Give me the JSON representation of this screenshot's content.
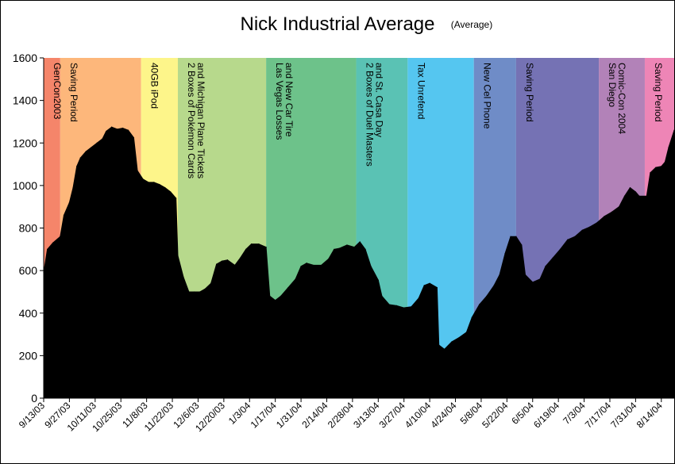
{
  "chart_data": {
    "type": "area",
    "title": "Nick Industrial Average",
    "subtitle": "(Average)",
    "xlabel": "",
    "ylabel": "",
    "ylim": [
      0,
      1600
    ],
    "y_ticks": [
      0,
      200,
      400,
      600,
      800,
      1000,
      1200,
      1400,
      1600
    ],
    "x_range": [
      "2003-09-13",
      "2004-08-21"
    ],
    "x_tick_labels": [
      "9/13/03",
      "9/27/03",
      "10/11/03",
      "10/25/03",
      "11/8/03",
      "11/22/03",
      "12/6/03",
      "12/20/03",
      "1/3/04",
      "1/17/04",
      "1/31/04",
      "2/14/04",
      "2/28/04",
      "3/13/04",
      "3/27/04",
      "4/10/04",
      "4/24/04",
      "5/8/04",
      "5/22/04",
      "6/5/04",
      "6/19/04",
      "7/3/04",
      "7/17/04",
      "7/31/04",
      "8/14/04"
    ],
    "x_tick_dates": [
      "2003-09-13",
      "2003-09-27",
      "2003-10-11",
      "2003-10-25",
      "2003-11-08",
      "2003-11-22",
      "2003-12-06",
      "2003-12-20",
      "2004-01-03",
      "2004-01-17",
      "2004-01-31",
      "2004-02-14",
      "2004-02-28",
      "2004-03-13",
      "2004-03-27",
      "2004-04-10",
      "2004-04-24",
      "2004-05-08",
      "2004-05-22",
      "2004-06-05",
      "2004-06-19",
      "2004-07-03",
      "2004-07-17",
      "2004-07-31",
      "2004-08-14"
    ],
    "grid": false,
    "legend": "none",
    "series": [
      {
        "color": "#000000",
        "points": [
          [
            "2003-09-13",
            590
          ],
          [
            "2003-09-15",
            700
          ],
          [
            "2003-09-18",
            730
          ],
          [
            "2003-09-22",
            760
          ],
          [
            "2003-09-24",
            860
          ],
          [
            "2003-09-27",
            920
          ],
          [
            "2003-09-29",
            990
          ],
          [
            "2003-10-01",
            1090
          ],
          [
            "2003-10-03",
            1130
          ],
          [
            "2003-10-06",
            1160
          ],
          [
            "2003-10-09",
            1180
          ],
          [
            "2003-10-12",
            1200
          ],
          [
            "2003-10-15",
            1220
          ],
          [
            "2003-10-17",
            1255
          ],
          [
            "2003-10-20",
            1275
          ],
          [
            "2003-10-23",
            1265
          ],
          [
            "2003-10-26",
            1270
          ],
          [
            "2003-10-29",
            1260
          ],
          [
            "2003-11-01",
            1225
          ],
          [
            "2003-11-03",
            1070
          ],
          [
            "2003-11-06",
            1030
          ],
          [
            "2003-11-09",
            1015
          ],
          [
            "2003-11-12",
            1015
          ],
          [
            "2003-11-15",
            1005
          ],
          [
            "2003-11-18",
            990
          ],
          [
            "2003-11-21",
            970
          ],
          [
            "2003-11-24",
            940
          ],
          [
            "2003-11-25",
            670
          ],
          [
            "2003-11-28",
            570
          ],
          [
            "2003-12-01",
            500
          ],
          [
            "2003-12-04",
            500
          ],
          [
            "2003-12-07",
            500
          ],
          [
            "2003-12-10",
            515
          ],
          [
            "2003-12-13",
            540
          ],
          [
            "2003-12-16",
            630
          ],
          [
            "2003-12-19",
            645
          ],
          [
            "2003-12-22",
            650
          ],
          [
            "2003-12-26",
            625
          ],
          [
            "2003-12-29",
            660
          ],
          [
            "2004-01-01",
            700
          ],
          [
            "2004-01-04",
            725
          ],
          [
            "2004-01-08",
            725
          ],
          [
            "2004-01-12",
            710
          ],
          [
            "2004-01-14",
            480
          ],
          [
            "2004-01-17",
            460
          ],
          [
            "2004-01-20",
            480
          ],
          [
            "2004-01-24",
            520
          ],
          [
            "2004-01-28",
            560
          ],
          [
            "2004-01-31",
            620
          ],
          [
            "2004-02-03",
            635
          ],
          [
            "2004-02-07",
            625
          ],
          [
            "2004-02-11",
            625
          ],
          [
            "2004-02-15",
            655
          ],
          [
            "2004-02-18",
            700
          ],
          [
            "2004-02-21",
            705
          ],
          [
            "2004-02-25",
            720
          ],
          [
            "2004-02-29",
            710
          ],
          [
            "2004-03-03",
            735
          ],
          [
            "2004-03-06",
            700
          ],
          [
            "2004-03-09",
            620
          ],
          [
            "2004-03-13",
            555
          ],
          [
            "2004-03-15",
            480
          ],
          [
            "2004-03-19",
            440
          ],
          [
            "2004-03-23",
            435
          ],
          [
            "2004-03-27",
            425
          ],
          [
            "2004-03-31",
            430
          ],
          [
            "2004-04-04",
            470
          ],
          [
            "2004-04-07",
            530
          ],
          [
            "2004-04-10",
            540
          ],
          [
            "2004-04-14",
            520
          ],
          [
            "2004-04-15",
            250
          ],
          [
            "2004-04-18",
            230
          ],
          [
            "2004-04-22",
            265
          ],
          [
            "2004-04-26",
            285
          ],
          [
            "2004-04-30",
            310
          ],
          [
            "2004-05-03",
            380
          ],
          [
            "2004-05-07",
            440
          ],
          [
            "2004-05-11",
            480
          ],
          [
            "2004-05-15",
            530
          ],
          [
            "2004-05-18",
            580
          ],
          [
            "2004-05-21",
            680
          ],
          [
            "2004-05-24",
            760
          ],
          [
            "2004-05-27",
            760
          ],
          [
            "2004-05-30",
            720
          ],
          [
            "2004-06-01",
            580
          ],
          [
            "2004-06-05",
            545
          ],
          [
            "2004-06-09",
            560
          ],
          [
            "2004-06-12",
            620
          ],
          [
            "2004-06-16",
            660
          ],
          [
            "2004-06-20",
            700
          ],
          [
            "2004-06-24",
            745
          ],
          [
            "2004-06-28",
            760
          ],
          [
            "2004-07-02",
            790
          ],
          [
            "2004-07-06",
            805
          ],
          [
            "2004-07-10",
            825
          ],
          [
            "2004-07-14",
            855
          ],
          [
            "2004-07-18",
            875
          ],
          [
            "2004-07-22",
            900
          ],
          [
            "2004-07-25",
            950
          ],
          [
            "2004-07-28",
            990
          ],
          [
            "2004-07-31",
            970
          ],
          [
            "2004-08-02",
            950
          ],
          [
            "2004-08-06",
            950
          ],
          [
            "2004-08-08",
            1060
          ],
          [
            "2004-08-11",
            1085
          ],
          [
            "2004-08-14",
            1090
          ],
          [
            "2004-08-16",
            1110
          ],
          [
            "2004-08-18",
            1180
          ],
          [
            "2004-08-21",
            1260
          ]
        ]
      }
    ],
    "annotations": [
      {
        "start": "2003-09-13",
        "end": "2003-09-22",
        "lines": [
          "GenCon2003"
        ],
        "color": "#f5856a"
      },
      {
        "start": "2003-09-22",
        "end": "2003-11-05",
        "lines": [
          "Saving Period"
        ],
        "color": "#fdb77b"
      },
      {
        "start": "2003-11-05",
        "end": "2003-11-25",
        "lines": [
          "40GB iPod"
        ],
        "color": "#fdf58a"
      },
      {
        "start": "2003-11-25",
        "end": "2004-01-12",
        "lines": [
          "2 Boxes of Pokémon Cards",
          "and Michigan Plane Tickets"
        ],
        "color": "#b7d98c"
      },
      {
        "start": "2004-01-12",
        "end": "2004-03-01",
        "lines": [
          "Las Vegas Losses",
          "and New Car Tire"
        ],
        "color": "#6dc28a"
      },
      {
        "start": "2004-03-01",
        "end": "2004-03-29",
        "lines": [
          "2 Boxes of Duel Masters",
          "and St. Casa Day"
        ],
        "color": "#5ac2b4"
      },
      {
        "start": "2004-03-29",
        "end": "2004-05-04",
        "lines": [
          "Tax Unrefend"
        ],
        "color": "#55c6f0"
      },
      {
        "start": "2004-05-04",
        "end": "2004-05-27",
        "lines": [
          "New Cel Phone"
        ],
        "color": "#6f8cc7"
      },
      {
        "start": "2004-05-27",
        "end": "2004-07-11",
        "lines": [
          "Saving Period"
        ],
        "color": "#7572b4"
      },
      {
        "start": "2004-07-11",
        "end": "2004-08-05",
        "lines": [
          "San Diego",
          "Comic-Con 2004"
        ],
        "color": "#b282b8"
      },
      {
        "start": "2004-08-05",
        "end": "2004-08-21",
        "lines": [
          "Saving Period"
        ],
        "color": "#ee85b6"
      }
    ]
  }
}
